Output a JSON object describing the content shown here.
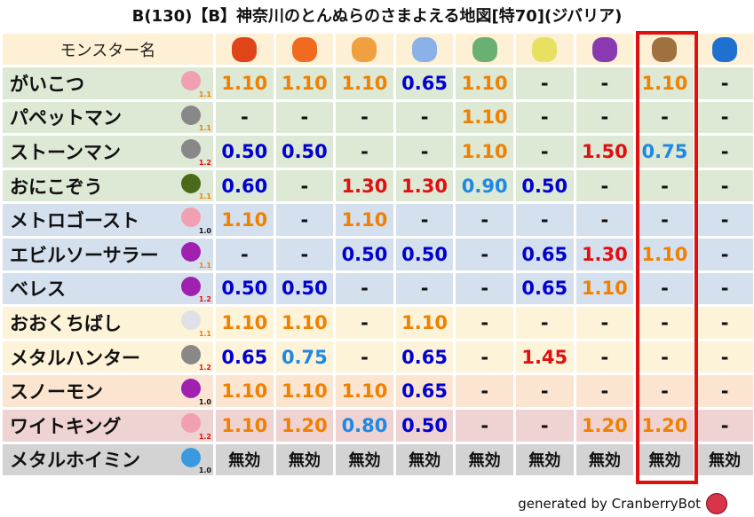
{
  "title": "B(130)【B】神奈川のとんぬらのさまよえる地図[特70](ジバリア)",
  "header": {
    "name_label": "モンスター名",
    "elements": [
      {
        "icon": "fire-ball-icon",
        "color": "#e0451a"
      },
      {
        "icon": "flame-icon",
        "color": "#f06a20"
      },
      {
        "icon": "explosion-icon",
        "color": "#f0a040"
      },
      {
        "icon": "ice-crystal-icon",
        "color": "#8cb0e8"
      },
      {
        "icon": "tornado-icon",
        "color": "#6ab070"
      },
      {
        "icon": "light-star-icon",
        "color": "#e8e060"
      },
      {
        "icon": "dark-swirl-icon",
        "color": "#8a3ab0"
      },
      {
        "icon": "earth-mountain-icon",
        "color": "#a07040"
      },
      {
        "icon": "water-wave-icon",
        "color": "#2070d0"
      }
    ]
  },
  "highlighted_column": 8,
  "value_colors": {
    "weak_strong": "#0000d0",
    "weak_mid": "#1e88e5",
    "up": "#f08000",
    "up_high": "#e01010",
    "neutral": "#111111"
  },
  "rows": [
    {
      "name": "がいこつ",
      "icon": "skull-icon",
      "icon_color": "#f0a0b0",
      "level": "1.1",
      "level_color": "#f08000",
      "bg": "#dde8d5",
      "values": [
        "1.10",
        "1.10",
        "1.10",
        "0.65",
        "1.10",
        "-",
        "-",
        "1.10",
        "-"
      ]
    },
    {
      "name": "パペットマン",
      "icon": "brick-wall-icon",
      "icon_color": "#888888",
      "level": "1.1",
      "level_color": "#f08000",
      "bg": "#dde8d5",
      "values": [
        "-",
        "-",
        "-",
        "-",
        "1.10",
        "-",
        "-",
        "-",
        "-"
      ]
    },
    {
      "name": "ストーンマン",
      "icon": "brick-wall-icon",
      "icon_color": "#888888",
      "level": "1.2",
      "level_color": "#e01010",
      "bg": "#dde8d5",
      "values": [
        "0.50",
        "0.50",
        "-",
        "-",
        "1.10",
        "-",
        "1.50",
        "0.75",
        "-"
      ]
    },
    {
      "name": "おにこぞう",
      "icon": "green-slime-ghost-icon",
      "icon_color": "#4a6a1a",
      "level": "1.1",
      "level_color": "#f08000",
      "bg": "#dde8d5",
      "values": [
        "0.60",
        "-",
        "1.30",
        "1.30",
        "0.90",
        "0.50",
        "-",
        "-",
        "-"
      ]
    },
    {
      "name": "メトロゴースト",
      "icon": "skull-icon",
      "icon_color": "#f0a0b0",
      "level": "1.0",
      "level_color": "#111111",
      "bg": "#d5e0ee",
      "values": [
        "1.10",
        "-",
        "1.10",
        "-",
        "-",
        "-",
        "-",
        "-",
        "-"
      ]
    },
    {
      "name": "エビルソーサラー",
      "icon": "trident-icon",
      "icon_color": "#a020b0",
      "level": "1.1",
      "level_color": "#f08000",
      "bg": "#d5e0ee",
      "values": [
        "-",
        "-",
        "0.50",
        "0.50",
        "-",
        "0.65",
        "1.30",
        "1.10",
        "-"
      ]
    },
    {
      "name": "ベレス",
      "icon": "trident-icon",
      "icon_color": "#a020b0",
      "level": "1.2",
      "level_color": "#e01010",
      "bg": "#d5e0ee",
      "values": [
        "0.50",
        "0.50",
        "-",
        "-",
        "-",
        "0.65",
        "1.10",
        "-",
        "-"
      ]
    },
    {
      "name": "おおくちばし",
      "icon": "wing-icon",
      "icon_color": "#e0e0e8",
      "level": "1.1",
      "level_color": "#f08000",
      "bg": "#fdf3d8",
      "values": [
        "1.10",
        "1.10",
        "-",
        "1.10",
        "-",
        "-",
        "-",
        "-",
        "-"
      ]
    },
    {
      "name": "メタルハンター",
      "icon": "gear-icon",
      "icon_color": "#888888",
      "level": "1.2",
      "level_color": "#e01010",
      "bg": "#fdf3d8",
      "values": [
        "0.65",
        "0.75",
        "-",
        "0.65",
        "-",
        "1.45",
        "-",
        "-",
        "-"
      ]
    },
    {
      "name": "スノーモン",
      "icon": "trident-icon",
      "icon_color": "#a020b0",
      "level": "1.0",
      "level_color": "#111111",
      "bg": "#fbe5d0",
      "values": [
        "1.10",
        "1.10",
        "1.10",
        "0.65",
        "-",
        "-",
        "-",
        "-",
        "-"
      ]
    },
    {
      "name": "ワイトキング",
      "icon": "skull-icon",
      "icon_color": "#f0a0b0",
      "level": "1.2",
      "level_color": "#e01010",
      "bg": "#efd3d3",
      "values": [
        "1.10",
        "1.20",
        "0.80",
        "0.50",
        "-",
        "-",
        "1.20",
        "1.20",
        "-"
      ]
    },
    {
      "name": "メタルホイミン",
      "icon": "metal-slime-icon",
      "icon_color": "#3a9ae0",
      "level": "1.0",
      "level_color": "#111111",
      "bg": "#d3d3d3",
      "values": [
        "無効",
        "無効",
        "無効",
        "無効",
        "無効",
        "無効",
        "無効",
        "無効",
        "無効"
      ]
    }
  ],
  "footer": {
    "text": "generated by CranberryBot",
    "icon": "cranberry-icon"
  }
}
